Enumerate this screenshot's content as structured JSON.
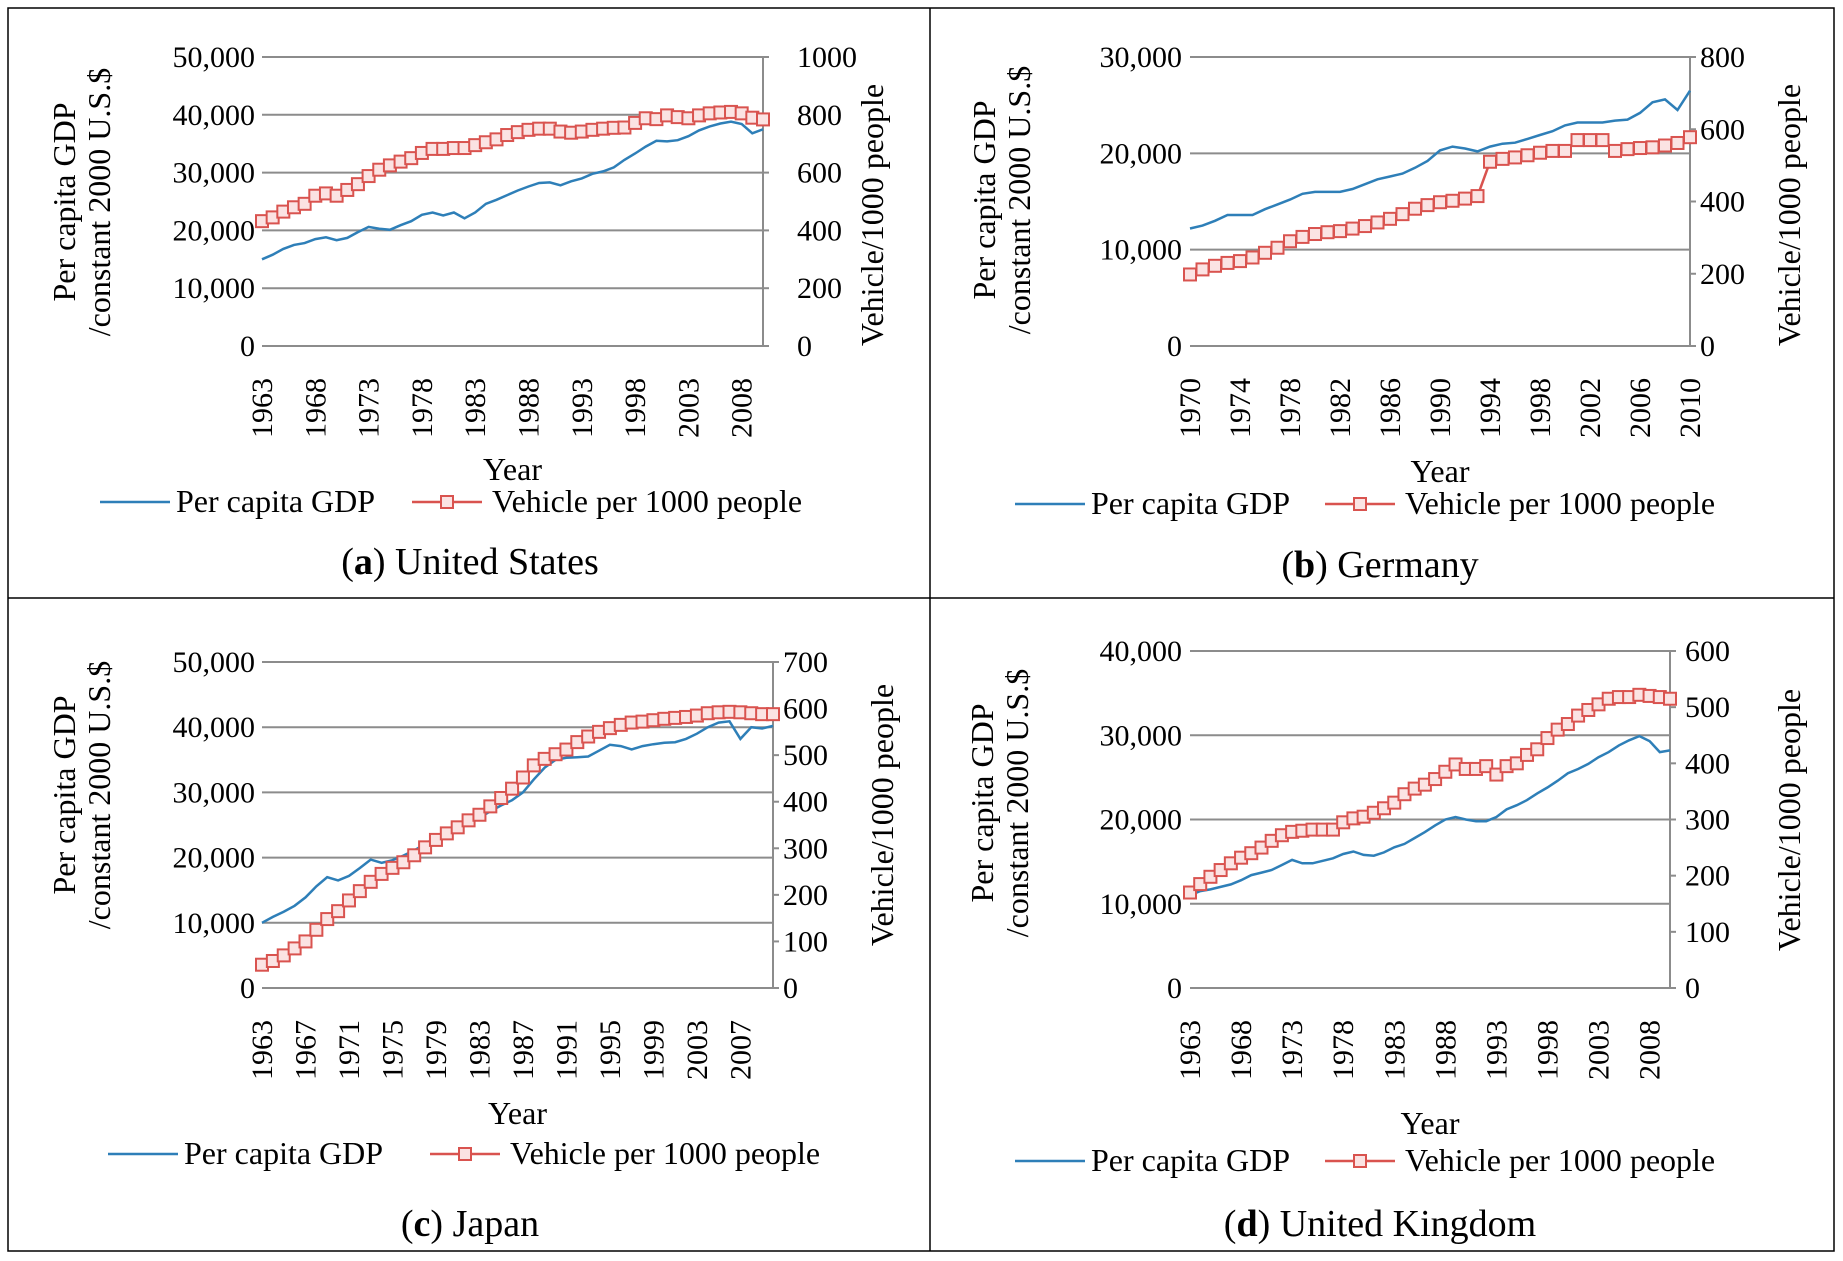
{
  "legend": {
    "gdp": "Per capita GDP",
    "vehicle": "Vehicle per 1000 people"
  },
  "colors": {
    "gdp": "#2e7fb8",
    "vehicle": "#d9534f",
    "grid": "#8c8c8c",
    "axis": "#8c8c8c"
  },
  "chart_data": [
    {
      "type": "line",
      "panel_letter": "a",
      "title": "United States",
      "xlabel": "Year",
      "ylabel_lines": [
        "Per capita GDP",
        "/constant 2000 U.S.$"
      ],
      "y2label": "Vehicle/1000 people",
      "ylim": [
        0,
        50000
      ],
      "y_ticks": [
        "0",
        "10,000",
        "20,000",
        "30,000",
        "40,000",
        "50,000"
      ],
      "y2lim": [
        0,
        1000
      ],
      "y2_ticks": [
        "0",
        "200",
        "400",
        "600",
        "800",
        "1000"
      ],
      "x_range": [
        1963,
        2010
      ],
      "x_ticks": [
        "1963",
        "1968",
        "1973",
        "1978",
        "1983",
        "1988",
        "1993",
        "1998",
        "2003",
        "2008"
      ],
      "gdp": {
        "x": [
          1963,
          1964,
          1965,
          1966,
          1967,
          1968,
          1969,
          1970,
          1971,
          1972,
          1973,
          1974,
          1975,
          1976,
          1977,
          1978,
          1979,
          1980,
          1981,
          1982,
          1983,
          1984,
          1985,
          1986,
          1987,
          1988,
          1989,
          1990,
          1991,
          1992,
          1993,
          1994,
          1995,
          1996,
          1997,
          1998,
          1999,
          2000,
          2001,
          2002,
          2003,
          2004,
          2005,
          2006,
          2007,
          2008,
          2009,
          2010
        ],
        "y": [
          15000,
          15800,
          16800,
          17500,
          17800,
          18500,
          18800,
          18300,
          18700,
          19700,
          20600,
          20300,
          20100,
          20900,
          21600,
          22700,
          23100,
          22600,
          23100,
          22100,
          23100,
          24600,
          25300,
          26100,
          26900,
          27600,
          28200,
          28300,
          27800,
          28500,
          29000,
          29800,
          30200,
          30900,
          32200,
          33300,
          34500,
          35500,
          35400,
          35600,
          36300,
          37300,
          38000,
          38500,
          38800,
          38400,
          36800,
          37500
        ]
      },
      "vehicle": {
        "x": [
          1963,
          1964,
          1965,
          1966,
          1967,
          1968,
          1969,
          1970,
          1971,
          1972,
          1973,
          1974,
          1975,
          1976,
          1977,
          1978,
          1979,
          1980,
          1981,
          1982,
          1983,
          1984,
          1985,
          1986,
          1987,
          1988,
          1989,
          1990,
          1991,
          1992,
          1993,
          1994,
          1995,
          1996,
          1997,
          1998,
          1999,
          2000,
          2001,
          2002,
          2003,
          2004,
          2005,
          2006,
          2007,
          2008,
          2009,
          2010
        ],
        "y": [
          432,
          445,
          465,
          480,
          492,
          520,
          528,
          520,
          540,
          560,
          588,
          610,
          625,
          638,
          650,
          668,
          682,
          682,
          685,
          685,
          695,
          705,
          715,
          730,
          740,
          748,
          752,
          752,
          742,
          738,
          742,
          748,
          752,
          755,
          756,
          772,
          788,
          785,
          798,
          792,
          788,
          798,
          805,
          808,
          810,
          805,
          790,
          784
        ]
      }
    },
    {
      "type": "line",
      "panel_letter": "b",
      "title": "Germany",
      "xlabel": "Year",
      "ylabel_lines": [
        "Per capita GDP",
        "/constant 2000 U.S.$"
      ],
      "y2label": "Vehicle/1000 people",
      "ylim": [
        0,
        30000
      ],
      "y_ticks": [
        "0",
        "10,000",
        "20,000",
        "30,000"
      ],
      "y2lim": [
        0,
        800
      ],
      "y2_ticks": [
        "0",
        "200",
        "400",
        "600",
        "800"
      ],
      "x_range": [
        1970,
        2010
      ],
      "x_ticks": [
        "1970",
        "1974",
        "1978",
        "1982",
        "1986",
        "1990",
        "1994",
        "1998",
        "2002",
        "2006",
        "2010"
      ],
      "gdp": {
        "x": [
          1970,
          1971,
          1972,
          1973,
          1974,
          1975,
          1976,
          1977,
          1978,
          1979,
          1980,
          1981,
          1982,
          1983,
          1984,
          1985,
          1986,
          1987,
          1988,
          1989,
          1990,
          1991,
          1992,
          1993,
          1994,
          1995,
          1996,
          1997,
          1998,
          1999,
          2000,
          2001,
          2002,
          2003,
          2004,
          2005,
          2006,
          2007,
          2008,
          2009,
          2010
        ],
        "y": [
          12200,
          12500,
          13000,
          13600,
          13600,
          13600,
          14200,
          14700,
          15200,
          15800,
          16000,
          16000,
          16000,
          16300,
          16800,
          17300,
          17600,
          17900,
          18500,
          19200,
          20300,
          20700,
          20500,
          20200,
          20700,
          21000,
          21100,
          21500,
          21900,
          22300,
          22900,
          23200,
          23200,
          23200,
          23400,
          23500,
          24200,
          25300,
          25600,
          24500,
          26500
        ]
      },
      "vehicle": {
        "x": [
          1970,
          1971,
          1972,
          1973,
          1974,
          1975,
          1976,
          1977,
          1978,
          1979,
          1980,
          1981,
          1982,
          1983,
          1984,
          1985,
          1986,
          1987,
          1988,
          1989,
          1990,
          1991,
          1992,
          1993,
          1994,
          1995,
          1996,
          1997,
          1998,
          1999,
          2000,
          2001,
          2002,
          2003,
          2004,
          2005,
          2006,
          2007,
          2008,
          2009,
          2010
        ],
        "y": [
          198,
          212,
          222,
          230,
          235,
          245,
          258,
          272,
          290,
          302,
          310,
          315,
          318,
          325,
          332,
          342,
          352,
          365,
          380,
          390,
          398,
          402,
          408,
          415,
          510,
          518,
          522,
          528,
          535,
          540,
          540,
          570,
          570,
          570,
          540,
          545,
          548,
          550,
          555,
          562,
          578
        ]
      }
    },
    {
      "type": "line",
      "panel_letter": "c",
      "title": "Japan",
      "xlabel": "Year",
      "ylabel_lines": [
        "Per capita GDP",
        "/constant 2000 U.S.$"
      ],
      "y2label": "Vehicle/1000 people",
      "ylim": [
        0,
        50000
      ],
      "y_ticks": [
        "0",
        "10,000",
        "20,000",
        "30,000",
        "40,000",
        "50,000"
      ],
      "y2lim": [
        0,
        700
      ],
      "y2_ticks": [
        "0",
        "100",
        "200",
        "300",
        "400",
        "500",
        "600",
        "700"
      ],
      "x_range": [
        1963,
        2010
      ],
      "x_ticks": [
        "1963",
        "1967",
        "1971",
        "1975",
        "1979",
        "1983",
        "1987",
        "1991",
        "1995",
        "1999",
        "2003",
        "2007"
      ],
      "gdp": {
        "x": [
          1963,
          1964,
          1965,
          1966,
          1967,
          1968,
          1969,
          1970,
          1971,
          1972,
          1973,
          1974,
          1975,
          1976,
          1977,
          1978,
          1979,
          1980,
          1981,
          1982,
          1983,
          1984,
          1985,
          1986,
          1987,
          1988,
          1989,
          1990,
          1991,
          1992,
          1993,
          1994,
          1995,
          1996,
          1997,
          1998,
          1999,
          2000,
          2001,
          2002,
          2003,
          2004,
          2005,
          2006,
          2007,
          2008,
          2009,
          2010
        ],
        "y": [
          10000,
          10900,
          11700,
          12600,
          13900,
          15600,
          17000,
          16500,
          17200,
          18400,
          19700,
          19200,
          19600,
          20300,
          21100,
          22100,
          23100,
          23800,
          24700,
          25400,
          26100,
          27100,
          28000,
          28800,
          30000,
          32000,
          33800,
          35000,
          35300,
          35400,
          35500,
          36400,
          37300,
          37100,
          36600,
          37100,
          37400,
          37600,
          37700,
          38200,
          39000,
          40000,
          40700,
          40900,
          38200,
          40000,
          39800,
          40200
        ]
      },
      "vehicle": {
        "x": [
          1963,
          1964,
          1965,
          1966,
          1967,
          1968,
          1969,
          1970,
          1971,
          1972,
          1973,
          1974,
          1975,
          1976,
          1977,
          1978,
          1979,
          1980,
          1981,
          1982,
          1983,
          1984,
          1985,
          1986,
          1987,
          1988,
          1989,
          1990,
          1991,
          1992,
          1993,
          1994,
          1995,
          1996,
          1997,
          1998,
          1999,
          2000,
          2001,
          2002,
          2003,
          2004,
          2005,
          2006,
          2007,
          2008,
          2009,
          2010
        ],
        "y": [
          50,
          58,
          70,
          85,
          100,
          125,
          148,
          165,
          188,
          208,
          228,
          245,
          258,
          270,
          285,
          302,
          318,
          332,
          345,
          360,
          372,
          390,
          408,
          428,
          452,
          478,
          492,
          502,
          512,
          528,
          540,
          550,
          558,
          565,
          570,
          572,
          575,
          578,
          580,
          582,
          585,
          590,
          592,
          593,
          592,
          590,
          588,
          588
        ]
      }
    },
    {
      "type": "line",
      "panel_letter": "d",
      "title": "United Kingdom",
      "xlabel": "Year",
      "ylabel_lines": [
        "Per capita GDP",
        "/constant 2000 U.S.$"
      ],
      "y2label": "Vehicle/1000 people",
      "ylim": [
        0,
        40000
      ],
      "y_ticks": [
        "0",
        "10,000",
        "20,000",
        "30,000",
        "40,000"
      ],
      "y2lim": [
        0,
        600
      ],
      "y2_ticks": [
        "0",
        "100",
        "200",
        "300",
        "400",
        "500",
        "600"
      ],
      "x_range": [
        1963,
        2010
      ],
      "x_ticks": [
        "1963",
        "1968",
        "1973",
        "1978",
        "1983",
        "1988",
        "1993",
        "1998",
        "2003",
        "2008"
      ],
      "gdp": {
        "x": [
          1963,
          1964,
          1965,
          1966,
          1967,
          1968,
          1969,
          1970,
          1971,
          1972,
          1973,
          1974,
          1975,
          1976,
          1977,
          1978,
          1979,
          1980,
          1981,
          1982,
          1983,
          1984,
          1985,
          1986,
          1987,
          1988,
          1989,
          1990,
          1991,
          1992,
          1993,
          1994,
          1995,
          1996,
          1997,
          1998,
          1999,
          2000,
          2001,
          2002,
          2003,
          2004,
          2005,
          2006,
          2007,
          2008,
          2009,
          2010
        ],
        "y": [
          11000,
          11500,
          11700,
          12000,
          12300,
          12800,
          13400,
          13700,
          14000,
          14600,
          15200,
          14800,
          14800,
          15100,
          15400,
          15900,
          16200,
          15800,
          15700,
          16100,
          16700,
          17100,
          17800,
          18500,
          19300,
          20000,
          20300,
          20000,
          19800,
          19800,
          20300,
          21200,
          21700,
          22300,
          23100,
          23800,
          24600,
          25500,
          26000,
          26600,
          27400,
          28000,
          28800,
          29400,
          29900,
          29300,
          28000,
          28200
        ]
      },
      "vehicle": {
        "x": [
          1963,
          1964,
          1965,
          1966,
          1967,
          1968,
          1969,
          1970,
          1971,
          1972,
          1973,
          1974,
          1975,
          1976,
          1977,
          1978,
          1979,
          1980,
          1981,
          1982,
          1983,
          1984,
          1985,
          1986,
          1987,
          1988,
          1989,
          1990,
          1991,
          1992,
          1993,
          1994,
          1995,
          1996,
          1997,
          1998,
          1999,
          2000,
          2001,
          2002,
          2003,
          2004,
          2005,
          2006,
          2007,
          2008,
          2009,
          2010
        ],
        "y": [
          170,
          185,
          198,
          210,
          222,
          232,
          240,
          250,
          262,
          272,
          278,
          280,
          282,
          282,
          282,
          295,
          302,
          305,
          312,
          320,
          330,
          345,
          355,
          362,
          372,
          385,
          398,
          390,
          390,
          395,
          380,
          395,
          400,
          415,
          425,
          445,
          460,
          470,
          485,
          495,
          505,
          515,
          518,
          518,
          522,
          520,
          518,
          515
        ]
      }
    }
  ]
}
